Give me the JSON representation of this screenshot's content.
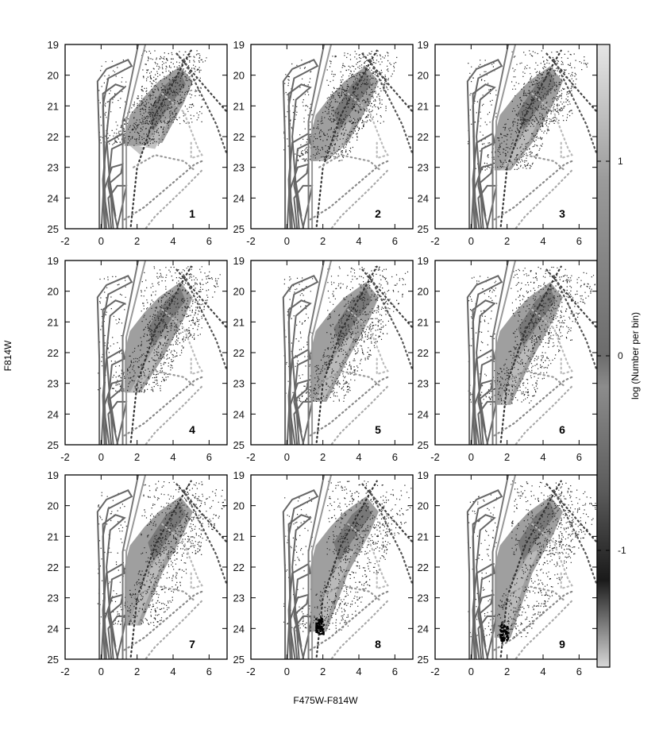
{
  "chart_data": {
    "type": "scatter",
    "layout": "3x3 grid of color-magnitude diagrams with shared colorbar",
    "xlabel": "F475W-F814W",
    "ylabel": "F814W",
    "xlim": [
      -2,
      7
    ],
    "ylim": [
      25,
      19
    ],
    "y_inverted": true,
    "xticks": [
      -2,
      0,
      2,
      4,
      6
    ],
    "yticks": [
      19,
      20,
      21,
      22,
      23,
      24,
      25
    ],
    "grid": false,
    "colorbar": {
      "label": "log (Number per bin)",
      "ticks": [
        1,
        0,
        -1
      ],
      "range": [
        -1.6,
        1.6
      ],
      "colormap": "grayscale"
    },
    "panels": [
      {
        "label": "1",
        "bright_limit": 19.4,
        "faint_limit": 22.3,
        "dense_color_range": [
          1.3,
          5.0
        ],
        "red_clump": null
      },
      {
        "label": "2",
        "bright_limit": 19.4,
        "faint_limit": 22.8,
        "dense_color_range": [
          1.3,
          5.0
        ],
        "red_clump": null
      },
      {
        "label": "3",
        "bright_limit": 19.4,
        "faint_limit": 23.1,
        "dense_color_range": [
          1.3,
          5.0
        ],
        "red_clump": null
      },
      {
        "label": "4",
        "bright_limit": 19.4,
        "faint_limit": 23.3,
        "dense_color_range": [
          1.3,
          5.0
        ],
        "red_clump": null
      },
      {
        "label": "5",
        "bright_limit": 19.4,
        "faint_limit": 23.6,
        "dense_color_range": [
          1.3,
          5.0
        ],
        "red_clump": null
      },
      {
        "label": "6",
        "bright_limit": 19.4,
        "faint_limit": 23.7,
        "dense_color_range": [
          1.3,
          5.0
        ],
        "red_clump": null
      },
      {
        "label": "7",
        "bright_limit": 19.4,
        "faint_limit": 23.9,
        "dense_color_range": [
          1.3,
          5.0
        ],
        "red_clump": null
      },
      {
        "label": "8",
        "bright_limit": 19.4,
        "faint_limit": 24.1,
        "dense_color_range": [
          1.3,
          5.0
        ],
        "red_clump": {
          "x": 1.8,
          "y": 23.9
        }
      },
      {
        "label": "9",
        "bright_limit": 19.4,
        "faint_limit": 24.3,
        "dense_color_range": [
          1.3,
          5.0
        ],
        "red_clump": {
          "x": 1.8,
          "y": 24.1
        }
      }
    ]
  }
}
